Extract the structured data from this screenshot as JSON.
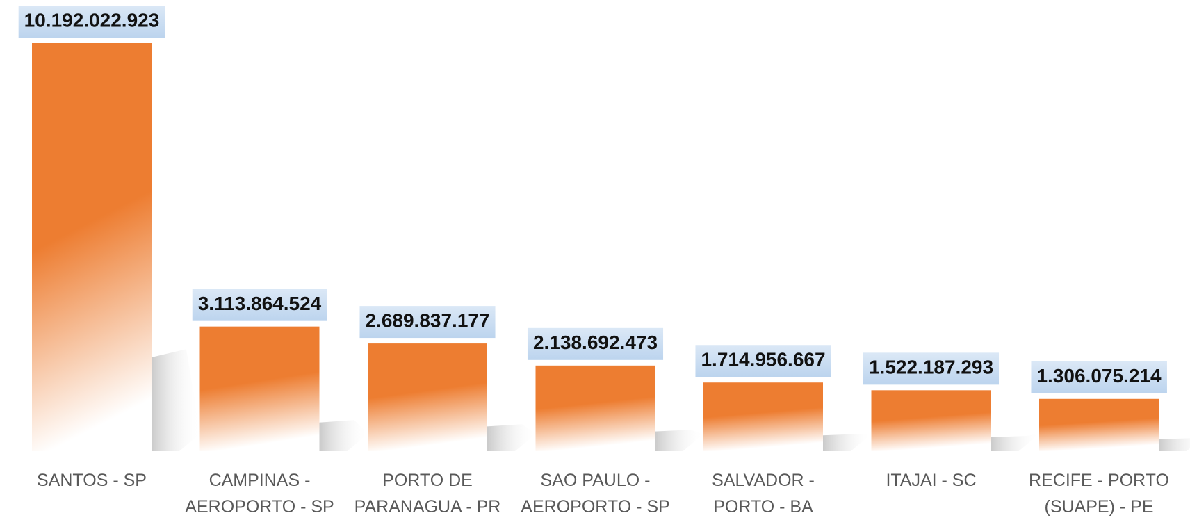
{
  "chart_data": {
    "type": "bar",
    "categories": [
      "SANTOS - SP",
      "CAMPINAS - AEROPORTO - SP",
      "PORTO DE PARANAGUA - PR",
      "SAO PAULO - AEROPORTO - SP",
      "SALVADOR - PORTO - BA",
      "ITAJAI - SC",
      "RECIFE - PORTO (SUAPE) - PE"
    ],
    "values": [
      10192022923,
      3113864524,
      2689837177,
      2138692473,
      1714956667,
      1522187293,
      1306075214
    ],
    "value_labels": [
      "10.192.022.923",
      "3.113.864.524",
      "2.689.837.177",
      "2.138.692.473",
      "1.714.956.667",
      "1.522.187.293",
      "1.306.075.214"
    ],
    "color": "#ed7d31"
  }
}
